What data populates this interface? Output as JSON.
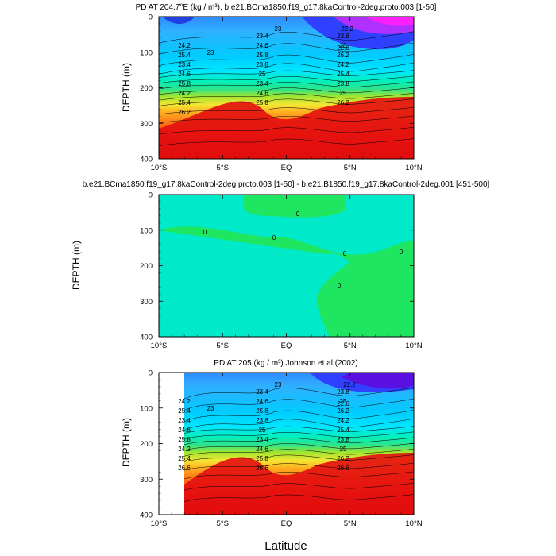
{
  "figure": {
    "xlabel": "Latitude"
  },
  "chart_data": [
    {
      "type": "contour",
      "title": "PD AT 204.7°E (kg / m³), b.e21.BCma1850.f19_g17.8kaControl-2deg.proto.003 [1-50]",
      "xlabel": "",
      "ylabel": "DEPTH (m)",
      "xlim": [
        -10,
        10
      ],
      "ylim": [
        0,
        400
      ],
      "y_inverted": true,
      "x_ticks": [
        "10°S",
        "5°S",
        "EQ",
        "5°N",
        "10°N"
      ],
      "y_ticks": [
        "0",
        "100",
        "200",
        "300",
        "400"
      ],
      "contour_labels": [
        "22.2",
        "23",
        "23",
        "22.6",
        "23.4",
        "23.8",
        "24.2",
        "24.6",
        "25",
        "25.4",
        "25.8",
        "26.2",
        "23.4",
        "23.8",
        "24.2",
        "24.6",
        "25",
        "25.4",
        "25.8",
        "23.4",
        "23.8",
        "24.2",
        "24.6",
        "25",
        "25.4",
        "25.8",
        "26.2",
        "26.2"
      ],
      "has_data_mask": false
    },
    {
      "type": "contour",
      "title": "b.e21.BCma1850.f19_g17.8kaControl-2deg.proto.003 [1-50] - b.e21.B1850.f19_g17.8kaControl-2deg.001 [451-500]",
      "xlabel": "",
      "ylabel": "DEPTH (m)",
      "xlim": [
        -10,
        10
      ],
      "ylim": [
        0,
        400
      ],
      "y_inverted": true,
      "x_ticks": [
        "10°S",
        "5°S",
        "EQ",
        "5°N",
        "10°N"
      ],
      "y_ticks": [
        "0",
        "100",
        "200",
        "300",
        "400"
      ],
      "contour_labels": [
        "0",
        "0",
        "0",
        "0",
        "0",
        "0"
      ],
      "has_data_mask": false
    },
    {
      "type": "contour",
      "title": "PD AT 205 (kg / m³) Johnson et al (2002)",
      "xlabel": "",
      "ylabel": "DEPTH (m)",
      "xlim": [
        -10,
        10
      ],
      "ylim": [
        0,
        400
      ],
      "y_inverted": true,
      "x_ticks": [
        "10°S",
        "5°S",
        "EQ",
        "5°N",
        "10°N"
      ],
      "y_ticks": [
        "0",
        "100",
        "200",
        "300",
        "400"
      ],
      "contour_labels": [
        "22.2",
        "23",
        "23",
        "22.6",
        "23.4",
        "23.8",
        "24.2",
        "24.6",
        "25",
        "25.4",
        "25.8",
        "26.2",
        "23.4",
        "23.8",
        "24.2",
        "24.6",
        "25",
        "25.4",
        "25.8",
        "23.4",
        "23.8",
        "24.2",
        "24.6",
        "25",
        "25.4",
        "25.8",
        "26.2",
        "26.6",
        "26.6",
        "26.6"
      ],
      "has_data_mask": true,
      "data_starts_at_latitude": -8
    }
  ]
}
